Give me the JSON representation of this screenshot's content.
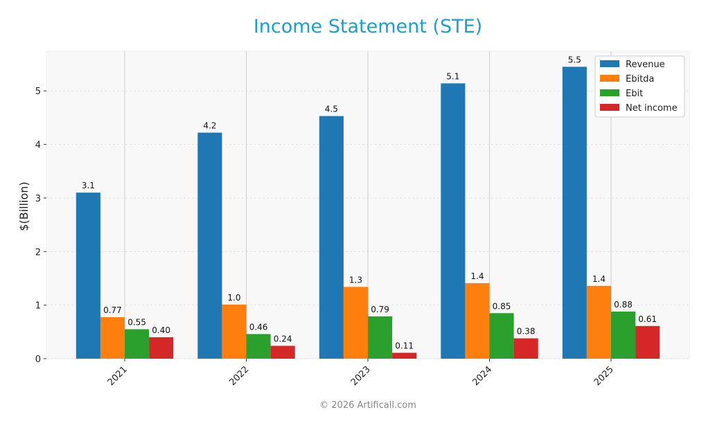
{
  "chart_data": {
    "type": "bar",
    "title": "Income Statement (STE)",
    "xlabel": "",
    "ylabel": "$(Billion)",
    "categories": [
      "2021",
      "2022",
      "2023",
      "2024",
      "2025"
    ],
    "ylim": [
      0,
      5.74
    ],
    "yticks": [
      0,
      1,
      2,
      3,
      4,
      5
    ],
    "grid": true,
    "legend": "top-right",
    "series": [
      {
        "name": "Revenue",
        "color": "#1f77b4",
        "values": [
          3.1,
          4.22,
          4.53,
          5.14,
          5.45
        ],
        "labels": [
          "3.1",
          "4.2",
          "4.5",
          "5.1",
          "5.5"
        ]
      },
      {
        "name": "Ebitda",
        "color": "#ff7f0e",
        "values": [
          0.775,
          1.01,
          1.34,
          1.41,
          1.36
        ],
        "labels": [
          "0.77",
          "1.0",
          "1.3",
          "1.4",
          "1.4"
        ]
      },
      {
        "name": "Ebit",
        "color": "#2ca02c",
        "values": [
          0.55,
          0.46,
          0.79,
          0.85,
          0.88
        ],
        "labels": [
          "0.55",
          "0.46",
          "0.79",
          "0.85",
          "0.88"
        ]
      },
      {
        "name": "Net income",
        "color": "#d62728",
        "values": [
          0.4,
          0.24,
          0.11,
          0.38,
          0.61
        ],
        "labels": [
          "0.40",
          "0.24",
          "0.11",
          "0.38",
          "0.61"
        ]
      }
    ]
  },
  "watermark": "© 2026 Artificall.com",
  "title_color": "#1a9fd0"
}
